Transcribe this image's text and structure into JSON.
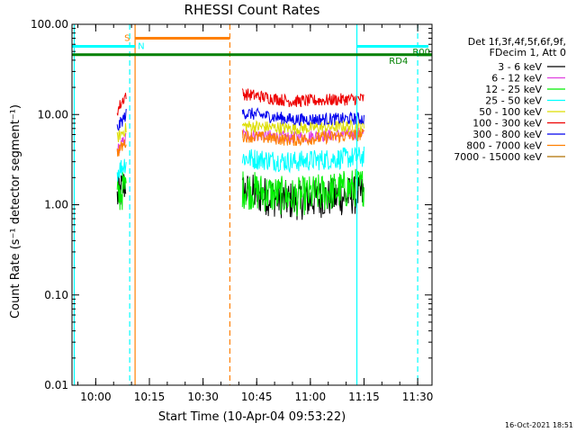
{
  "chart_data": {
    "type": "line",
    "title": "RHESSI Count Rates",
    "xlabel": "Start Time (10-Apr-04 09:53:22)",
    "ylabel": "Count Rate (s⁻¹ detector segment⁻¹)",
    "y_scale": "log",
    "ylim": [
      0.01,
      100
    ],
    "xlim": [
      "09:53:22",
      "11:34:00"
    ],
    "x_ticks": [
      "10:00",
      "10:15",
      "10:30",
      "10:45",
      "11:00",
      "11:15",
      "11:30"
    ],
    "y_ticks": [
      "0.01",
      "0.10",
      "1.00",
      "10.00",
      "100.00"
    ],
    "legend_position": "right",
    "legend_header": [
      "Det 1f,3f,4f,5f,6f,9f,",
      "FDecim 1, Att 0"
    ],
    "series": [
      {
        "name": "3 - 6 keV",
        "color": "#000000",
        "x": [
          "10:06:00",
          "10:08:30",
          "10:41:00",
          "10:55:00",
          "11:15:00"
        ],
        "y": [
          1.2,
          1.8,
          1.4,
          1.1,
          1.3
        ]
      },
      {
        "name": "6 - 12 keV",
        "color": "#e040e0",
        "x": [
          "10:06:00",
          "10:08:30",
          "10:41:00",
          "10:55:00",
          "11:15:00"
        ],
        "y": [
          4.0,
          5.5,
          6.0,
          5.6,
          6.2
        ]
      },
      {
        "name": "12 - 25 keV",
        "color": "#00ee00",
        "x": [
          "10:06:00",
          "10:08:30",
          "10:41:00",
          "10:55:00",
          "11:15:00"
        ],
        "y": [
          1.2,
          1.6,
          1.5,
          1.2,
          1.6
        ]
      },
      {
        "name": "25 - 50 keV",
        "color": "#00ffff",
        "x": [
          "10:06:00",
          "10:08:30",
          "10:41:00",
          "10:55:00",
          "11:15:00"
        ],
        "y": [
          2.3,
          3.0,
          3.3,
          3.0,
          3.4
        ]
      },
      {
        "name": "50 - 100 keV",
        "color": "#dddd00",
        "x": [
          "10:06:00",
          "10:08:30",
          "10:41:00",
          "10:55:00",
          "11:15:00"
        ],
        "y": [
          5.5,
          7.0,
          7.5,
          7.0,
          7.5
        ]
      },
      {
        "name": "100 - 300 keV",
        "color": "#ee0000",
        "x": [
          "10:06:00",
          "10:08:30",
          "10:41:00",
          "10:55:00",
          "11:15:00"
        ],
        "y": [
          11.0,
          17.0,
          17.0,
          14.0,
          15.0
        ]
      },
      {
        "name": "300 - 800 keV",
        "color": "#0000ee",
        "x": [
          "10:06:00",
          "10:08:30",
          "10:41:00",
          "10:55:00",
          "11:15:00"
        ],
        "y": [
          7.0,
          10.0,
          10.5,
          8.8,
          9.0
        ]
      },
      {
        "name": "800 - 7000 keV",
        "color": "#ff8000",
        "x": [
          "10:06:00",
          "10:08:30",
          "10:41:00",
          "10:55:00",
          "11:15:00"
        ],
        "y": [
          3.8,
          5.0,
          5.8,
          5.2,
          6.0
        ]
      },
      {
        "name": "7000 - 15000 keV",
        "color": "#b07000",
        "x": [],
        "y": []
      }
    ],
    "annotations": [
      {
        "label": "S",
        "color": "#ff8000",
        "x_start": "10:11:00",
        "x_end": "10:37:30",
        "y": 70
      },
      {
        "label": "N",
        "color": "#00ffff",
        "x_start": "09:53:22",
        "x_end": "10:11:00",
        "y": 57
      },
      {
        "label": "",
        "color": "#00ffff",
        "x_start": "11:13:00",
        "x_end": "11:33:00",
        "y": 57
      },
      {
        "label": "RD4",
        "color": "#008000",
        "x_start": "09:53:22",
        "x_end": "11:34:00",
        "y": 46
      },
      {
        "label": "R00",
        "color": "#008000",
        "x_start": "11:30:00",
        "x_end": "11:34:00",
        "y": 46
      }
    ],
    "vertical_markers": [
      {
        "x": "09:54:00",
        "color": "#00ffff",
        "style": "solid"
      },
      {
        "x": "10:09:30",
        "color": "#00ffff",
        "style": "dashed"
      },
      {
        "x": "10:11:00",
        "color": "#ff8000",
        "style": "solid"
      },
      {
        "x": "10:37:30",
        "color": "#ff8000",
        "style": "dashed"
      },
      {
        "x": "11:13:00",
        "color": "#00ffff",
        "style": "solid"
      },
      {
        "x": "11:30:00",
        "color": "#00ffff",
        "style": "dashed"
      }
    ]
  },
  "footer": {
    "timestamp": "16-Oct-2021 18:51"
  }
}
